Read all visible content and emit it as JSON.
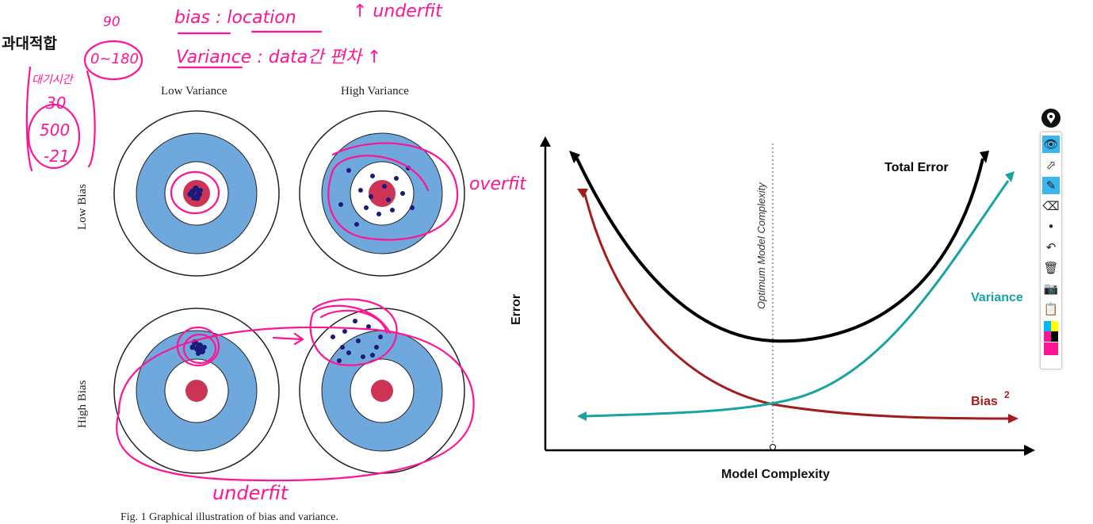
{
  "page_heading": "과대적합",
  "figure_left": {
    "column_labels": [
      "Low Variance",
      "High Variance"
    ],
    "row_labels": [
      "Low Bias",
      "High Bias"
    ],
    "caption": "Fig. 1 Graphical illustration of bias and variance."
  },
  "chart_data": {
    "type": "line",
    "xlabel": "Model Complexity",
    "ylabel": "Error",
    "annotation": "Optimum Model Complexity",
    "series": [
      {
        "name": "Total Error",
        "color": "#000000",
        "shape": "U-shaped, minimum at optimum"
      },
      {
        "name": "Variance",
        "color": "#1aa3a3",
        "shape": "increasing with complexity"
      },
      {
        "name": "Bias",
        "superscript": "2",
        "color": "#a31d1d",
        "shape": "decreasing with complexity"
      }
    ]
  },
  "handwritten_notes": {
    "bias_note": "bias : location",
    "underfit_top": "↑ underfit",
    "variance_note": "Variance : data간 편차 ↑",
    "range_note": "0~180",
    "ninety": "90",
    "wait_label": "대기시간",
    "numbers": [
      "30",
      "500",
      "-21"
    ],
    "overfit": "overfit",
    "underfit_bottom": "underfit"
  },
  "toolbar": {
    "accent": "#39b6f0",
    "tools": [
      {
        "name": "eye-icon",
        "glyph": "👁",
        "active": true
      },
      {
        "name": "pointer-icon",
        "glyph": "⬀",
        "active": false
      },
      {
        "name": "pen-icon",
        "glyph": "✎",
        "active": true
      },
      {
        "name": "eraser-icon",
        "glyph": "⌫",
        "active": false
      },
      {
        "name": "dot-icon",
        "glyph": "•",
        "active": false
      },
      {
        "name": "undo-icon",
        "glyph": "↶",
        "active": false
      },
      {
        "name": "trash-icon",
        "glyph": "🗑",
        "active": false
      },
      {
        "name": "camera-icon",
        "glyph": "📷",
        "active": false
      },
      {
        "name": "clipboard-icon",
        "glyph": "📋",
        "active": false
      }
    ],
    "colors": [
      "#00b7ff",
      "#ffff00",
      "#ff1493",
      "#000000",
      "#ff1493"
    ]
  }
}
